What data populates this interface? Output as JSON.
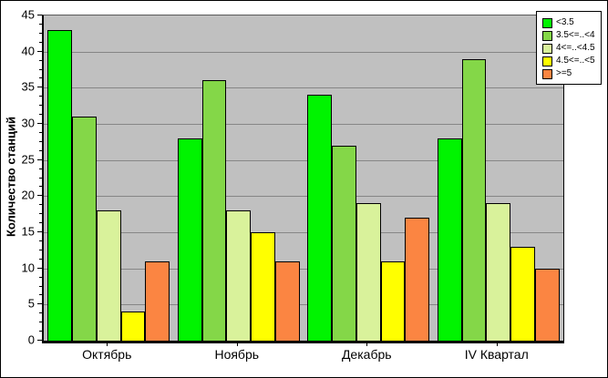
{
  "chart_data": {
    "type": "bar",
    "title": "",
    "categories": [
      "Октябрь",
      "Ноябрь",
      "Декабрь",
      "IV Квартал"
    ],
    "series": [
      {
        "name": "<3.5",
        "color": "#00F400",
        "values": [
          43,
          28,
          34,
          28
        ]
      },
      {
        "name": "3.5<=..<4",
        "color": "#84D748",
        "values": [
          31,
          36,
          27,
          39
        ]
      },
      {
        "name": "4<=..<4.5",
        "color": "#D9F29B",
        "values": [
          18,
          18,
          19,
          19
        ]
      },
      {
        "name": "4.5<=..<5",
        "color": "#FFFF00",
        "values": [
          4,
          15,
          11,
          13
        ]
      },
      {
        "name": ">=5",
        "color": "#FB8542",
        "values": [
          11,
          11,
          17,
          10
        ]
      }
    ],
    "xlabel": "",
    "ylabel": "Количество станций",
    "ylim": [
      0,
      45
    ],
    "ytick_step": 5,
    "minor_tick_step": 1.25,
    "grid": true,
    "legend_position": "top-right",
    "plot_background": "#C0C0C0",
    "gridline_color": "#868686"
  }
}
